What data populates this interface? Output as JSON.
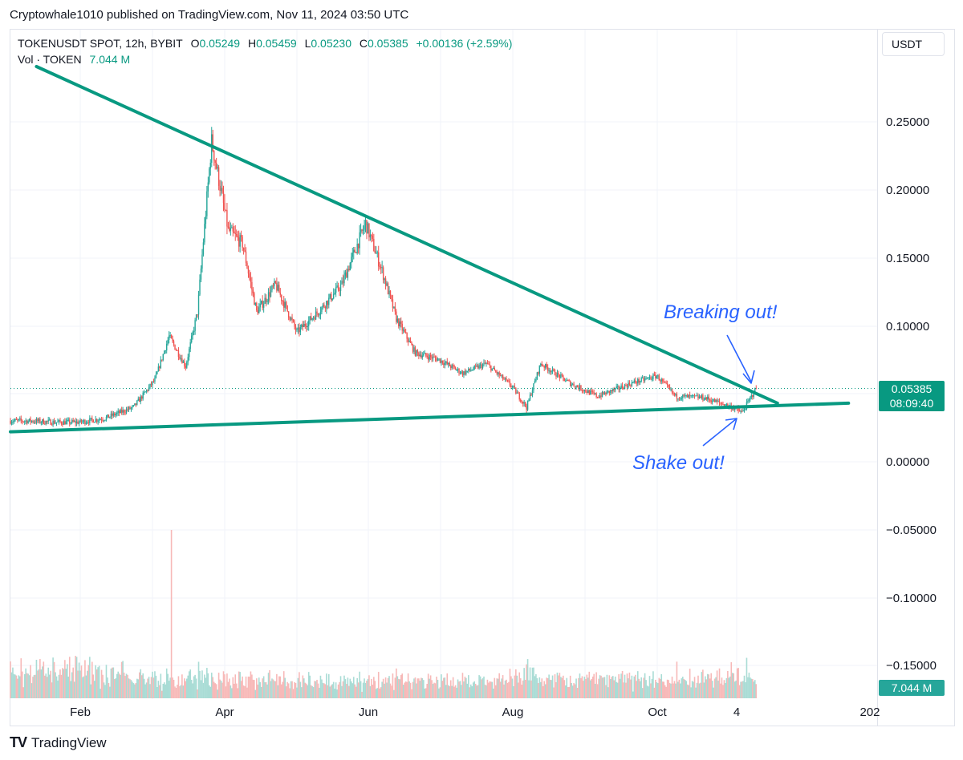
{
  "header": {
    "text": "Cryptowhale1010 published on TradingView.com, Nov 11, 2024 03:50 UTC"
  },
  "legend": {
    "symbol": "TOKENUSDT SPOT, 12h, BYBIT",
    "open_label": "O",
    "open": "0.05249",
    "high_label": "H",
    "high": "0.05459",
    "low_label": "L",
    "low": "0.05230",
    "close_label": "C",
    "close": "0.05385",
    "change": "+0.00136 (+2.59%)",
    "vol_label": "Vol · TOKEN",
    "vol_value": "7.044 M"
  },
  "currency_button": "USDT",
  "price_tag": {
    "price": "0.05385",
    "countdown": "08:09:40"
  },
  "vol_tag": "7.044 M",
  "annotations": {
    "breakout": "Breaking out!",
    "shakeout": "Shake out!"
  },
  "brand": {
    "logo": "TV",
    "name": "TradingView"
  },
  "colors": {
    "up": "#26a69a",
    "down": "#ef5350",
    "trendline": "#089981",
    "annotation": "#2962ff",
    "grid": "#f0f3fa"
  },
  "chart_data": {
    "type": "candlestick",
    "symbol": "TOKENUSDT",
    "interval": "12h",
    "exchange": "BYBIT",
    "y_axis": {
      "ticks": [
        "0.25000",
        "0.20000",
        "0.15000",
        "0.10000",
        "0.00000",
        "−0.05000",
        "−0.10000",
        "−0.15000"
      ],
      "range": [
        -0.17,
        0.3
      ]
    },
    "x_axis": {
      "ticks": [
        "Feb",
        "Apr",
        "Jun",
        "Aug",
        "Oct",
        "4",
        "202"
      ]
    },
    "price_path": [
      {
        "date": "2024-01-10",
        "price": 0.03
      },
      {
        "date": "2024-01-20",
        "price": 0.029
      },
      {
        "date": "2024-01-30",
        "price": 0.029
      },
      {
        "date": "2024-02-10",
        "price": 0.032
      },
      {
        "date": "2024-02-22",
        "price": 0.04
      },
      {
        "date": "2024-03-02",
        "price": 0.06
      },
      {
        "date": "2024-03-08",
        "price": 0.092
      },
      {
        "date": "2024-03-15",
        "price": 0.07
      },
      {
        "date": "2024-03-20",
        "price": 0.11
      },
      {
        "date": "2024-03-26",
        "price": 0.235
      },
      {
        "date": "2024-04-02",
        "price": 0.17
      },
      {
        "date": "2024-04-08",
        "price": 0.16
      },
      {
        "date": "2024-04-14",
        "price": 0.11
      },
      {
        "date": "2024-04-22",
        "price": 0.13
      },
      {
        "date": "2024-05-01",
        "price": 0.095
      },
      {
        "date": "2024-05-10",
        "price": 0.11
      },
      {
        "date": "2024-05-20",
        "price": 0.13
      },
      {
        "date": "2024-05-30",
        "price": 0.175
      },
      {
        "date": "2024-06-06",
        "price": 0.14
      },
      {
        "date": "2024-06-12",
        "price": 0.105
      },
      {
        "date": "2024-06-20",
        "price": 0.08
      },
      {
        "date": "2024-06-30",
        "price": 0.075
      },
      {
        "date": "2024-07-10",
        "price": 0.065
      },
      {
        "date": "2024-07-20",
        "price": 0.072
      },
      {
        "date": "2024-07-31",
        "price": 0.055
      },
      {
        "date": "2024-08-06",
        "price": 0.04
      },
      {
        "date": "2024-08-12",
        "price": 0.072
      },
      {
        "date": "2024-08-24",
        "price": 0.058
      },
      {
        "date": "2024-09-05",
        "price": 0.048
      },
      {
        "date": "2024-09-20",
        "price": 0.058
      },
      {
        "date": "2024-09-30",
        "price": 0.063
      },
      {
        "date": "2024-10-08",
        "price": 0.048
      },
      {
        "date": "2024-10-20",
        "price": 0.047
      },
      {
        "date": "2024-11-01",
        "price": 0.04
      },
      {
        "date": "2024-11-05",
        "price": 0.036
      },
      {
        "date": "2024-11-11",
        "price": 0.05385
      }
    ],
    "trendlines": [
      {
        "name": "descending resistance",
        "points": [
          {
            "date": "2024-01-12",
            "price": 0.29
          },
          {
            "date": "2024-11-20",
            "price": 0.043
          }
        ]
      },
      {
        "name": "ascending support",
        "points": [
          {
            "date": "2024-01-01",
            "price": 0.022
          },
          {
            "date": "2024-12-20",
            "price": 0.043
          }
        ]
      }
    ],
    "last_price": 0.05385
  }
}
